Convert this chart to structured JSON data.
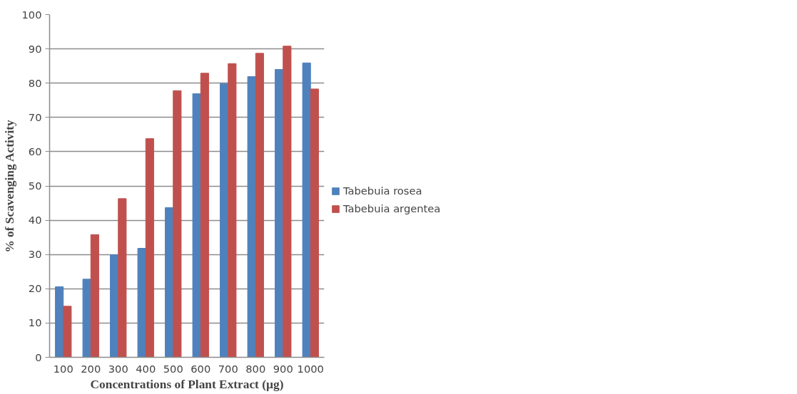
{
  "chart_data": {
    "type": "bar",
    "xlabel": "Concentrations of Plant Extract (µg)",
    "ylabel": "% of Scavenging Activity",
    "categories": [
      "100",
      "200",
      "300",
      "400",
      "500",
      "600",
      "700",
      "800",
      "900",
      "1000"
    ],
    "series": [
      {
        "name": "Tabebuia rosea",
        "color": "#4f81bd",
        "values": [
          20.6,
          22.8,
          29.9,
          31.8,
          43.7,
          76.9,
          79.9,
          81.9,
          84.0,
          85.9
        ]
      },
      {
        "name": "Tabebuia argentea",
        "color": "#c0504d",
        "values": [
          14.9,
          35.8,
          46.3,
          63.8,
          77.8,
          82.9,
          85.7,
          88.7,
          90.8,
          78.3
        ]
      }
    ],
    "ylim": [
      0,
      100
    ],
    "yticks": [
      0,
      10,
      20,
      30,
      40,
      50,
      60,
      70,
      80,
      90,
      100
    ],
    "grid": "y",
    "legend": "right"
  }
}
